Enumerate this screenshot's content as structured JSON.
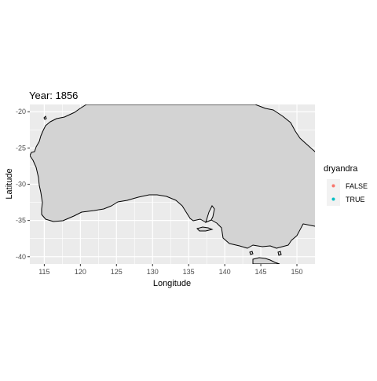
{
  "title": "Year: 1856",
  "axes": {
    "xlabel": "Longitude",
    "ylabel": "Latitude",
    "xticks": [
      115,
      120,
      125,
      130,
      135,
      140,
      145,
      150
    ],
    "yticks": [
      -20,
      -25,
      -30,
      -35,
      -40
    ],
    "xlim": [
      113,
      152.5
    ],
    "ylim": [
      -41,
      -19
    ]
  },
  "legend": {
    "title": "dryandra",
    "items": [
      {
        "label": "FALSE",
        "color": "#F8766D"
      },
      {
        "label": "TRUE",
        "color": "#00BFC4"
      }
    ]
  },
  "colors": {
    "panel": "#EBEBEB",
    "land": "#D3D3D3",
    "grid": "#FFFFFF",
    "outline": "#000000",
    "text": "#1A1A1A",
    "tick_text": "#4D4D4D"
  },
  "chart_data": {
    "type": "map",
    "title": "Year: 1856",
    "xlabel": "Longitude",
    "ylabel": "Latitude",
    "xlim": [
      113,
      152.5
    ],
    "ylim": [
      -41,
      -19
    ],
    "grid": true,
    "legend_position": "right",
    "series": [
      {
        "name": "FALSE",
        "color": "#F8766D",
        "points": []
      },
      {
        "name": "TRUE",
        "color": "#00BFC4",
        "points": []
      }
    ]
  }
}
